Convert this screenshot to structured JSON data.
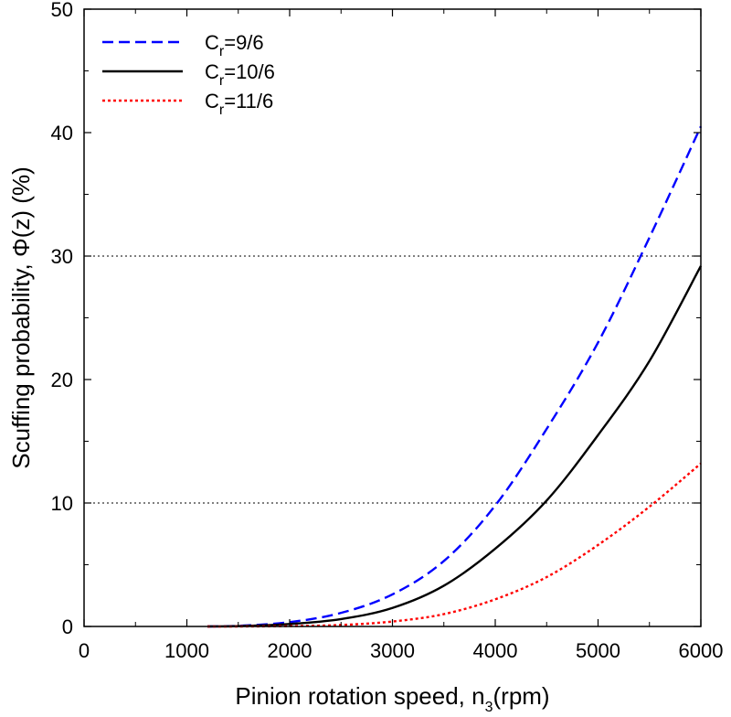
{
  "chart_data": {
    "type": "line",
    "xlabel": {
      "main": "Pinion rotation speed, n",
      "sub": "3",
      "tail": "(rpm)"
    },
    "ylabel": "Scuffing probability, Φ(z) (%)",
    "xlim": [
      0,
      6000
    ],
    "ylim": [
      0,
      50
    ],
    "xticks": [
      0,
      1000,
      2000,
      3000,
      4000,
      5000,
      6000
    ],
    "yticks": [
      0,
      10,
      20,
      30,
      40,
      50
    ],
    "grid": false,
    "reference_lines": [
      10,
      30
    ],
    "legend_position": "top-left",
    "series": [
      {
        "name": {
          "main": "C",
          "sub": "r",
          "tail": "=9/6"
        },
        "color": "#0000ff",
        "style": "dashed",
        "x": [
          1200,
          1500,
          2000,
          2500,
          3000,
          3500,
          4000,
          4500,
          5000,
          5500,
          6000
        ],
        "y": [
          0.0,
          0.05,
          0.35,
          1.1,
          2.6,
          5.3,
          9.8,
          16.0,
          23.0,
          31.5,
          40.5
        ]
      },
      {
        "name": {
          "main": "C",
          "sub": "r",
          "tail": "=10/6"
        },
        "color": "#000000",
        "style": "solid",
        "x": [
          1200,
          1500,
          2000,
          2500,
          3000,
          3500,
          4000,
          4500,
          5000,
          5500,
          6000
        ],
        "y": [
          0.0,
          0.03,
          0.2,
          0.6,
          1.5,
          3.3,
          6.3,
          10.2,
          15.5,
          21.5,
          29.2
        ]
      },
      {
        "name": {
          "main": "C",
          "sub": "r",
          "tail": "=11/6"
        },
        "color": "#ff0000",
        "style": "dotted",
        "x": [
          1200,
          1500,
          2000,
          2500,
          3000,
          3500,
          4000,
          4500,
          5000,
          5500,
          6000
        ],
        "y": [
          0.0,
          0.0,
          0.03,
          0.12,
          0.4,
          1.0,
          2.2,
          4.0,
          6.6,
          9.7,
          13.2
        ]
      }
    ]
  }
}
